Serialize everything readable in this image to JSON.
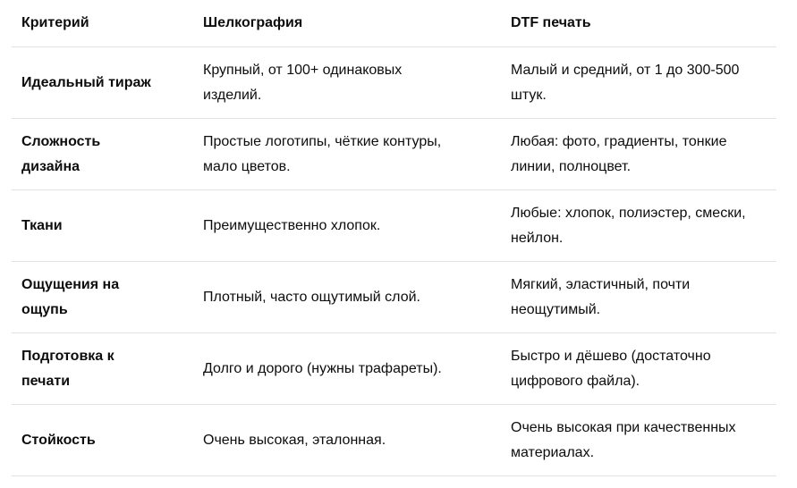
{
  "table": {
    "headers": [
      "Критерий",
      "Шелкография",
      "DTF печать"
    ],
    "rows": [
      [
        [
          "Идеальный тираж"
        ],
        [
          "Крупный, от 100+ одинаковых",
          "изделий."
        ],
        [
          "Малый и средний, от 1 до 300-500",
          "штук."
        ]
      ],
      [
        [
          "Сложность",
          "дизайна"
        ],
        [
          "Простые логотипы, чёткие контуры,",
          "мало цветов."
        ],
        [
          "Любая: фото, градиенты, тонкие",
          "линии, полноцвет."
        ]
      ],
      [
        [
          "Ткани"
        ],
        [
          "Преимущественно хлопок."
        ],
        [
          "Любые: хлопок, полиэстер, смески,",
          "нейлон."
        ]
      ],
      [
        [
          "Ощущения на",
          "ощупь"
        ],
        [
          "Плотный, часто ощутимый слой."
        ],
        [
          "Мягкий, эластичный, почти",
          "неощутимый."
        ]
      ],
      [
        [
          "Подготовка к",
          "печати"
        ],
        [
          "Долго и дорого (нужны трафареты)."
        ],
        [
          "Быстро и дёшево (достаточно",
          "цифрового файла)."
        ]
      ],
      [
        [
          "Стойкость"
        ],
        [
          "Очень высокая, эталонная."
        ],
        [
          "Очень высокая при качественных",
          "материалах."
        ]
      ]
    ]
  }
}
